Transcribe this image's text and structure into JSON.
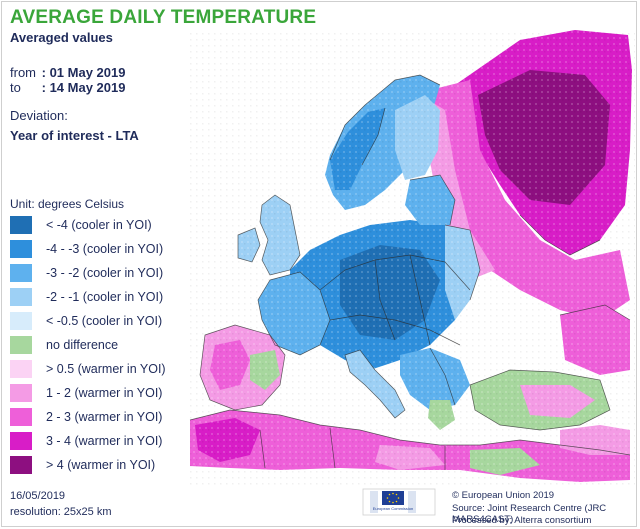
{
  "title": "AVERAGE DAILY TEMPERATURE",
  "subtitle": "Averaged values",
  "period": {
    "from_label": "from",
    "from_value": ": 01 May 2019",
    "to_label": "to",
    "to_value": ": 14 May 2019"
  },
  "deviation_label": "Deviation:",
  "deviation_value": "Year of interest - LTA",
  "unit": "Unit: degrees Celsius",
  "legend": [
    {
      "label": "< -4  (cooler in YOI)",
      "color": "#1f6fb4"
    },
    {
      "label": "-4 - -3  (cooler in YOI)",
      "color": "#2e8fdc"
    },
    {
      "label": "-3 - -2  (cooler in YOI)",
      "color": "#5eb1ee"
    },
    {
      "label": "-2 - -1  (cooler in YOI)",
      "color": "#9dd0f5"
    },
    {
      "label": "< -0.5  (cooler in YOI)",
      "color": "#d7ecfb"
    },
    {
      "label": "no difference",
      "color": "#a7d79e"
    },
    {
      "label": "> 0.5  (warmer in YOI)",
      "color": "#fbd3f4"
    },
    {
      "label": "1 - 2  (warmer in YOI)",
      "color": "#f49be5"
    },
    {
      "label": "2 - 3  (warmer in YOI)",
      "color": "#ee5fd9"
    },
    {
      "label": "3 - 4  (warmer in YOI)",
      "color": "#d81dc7"
    },
    {
      "label": "> 4  (warmer in YOI)",
      "color": "#8d0f80"
    }
  ],
  "footer": {
    "date": "16/05/2019",
    "resolution": "resolution: 25x25 km",
    "copyright": "© European Union 2019",
    "source": "Source: Joint Research Centre (JRC MARS4CAST)",
    "processed": "Processed by: Alterra consortium",
    "logo_text": "European Commission"
  },
  "colors": {
    "sea": "#ffffff",
    "border": "#2b2b2b",
    "title": "#3aa63a"
  }
}
